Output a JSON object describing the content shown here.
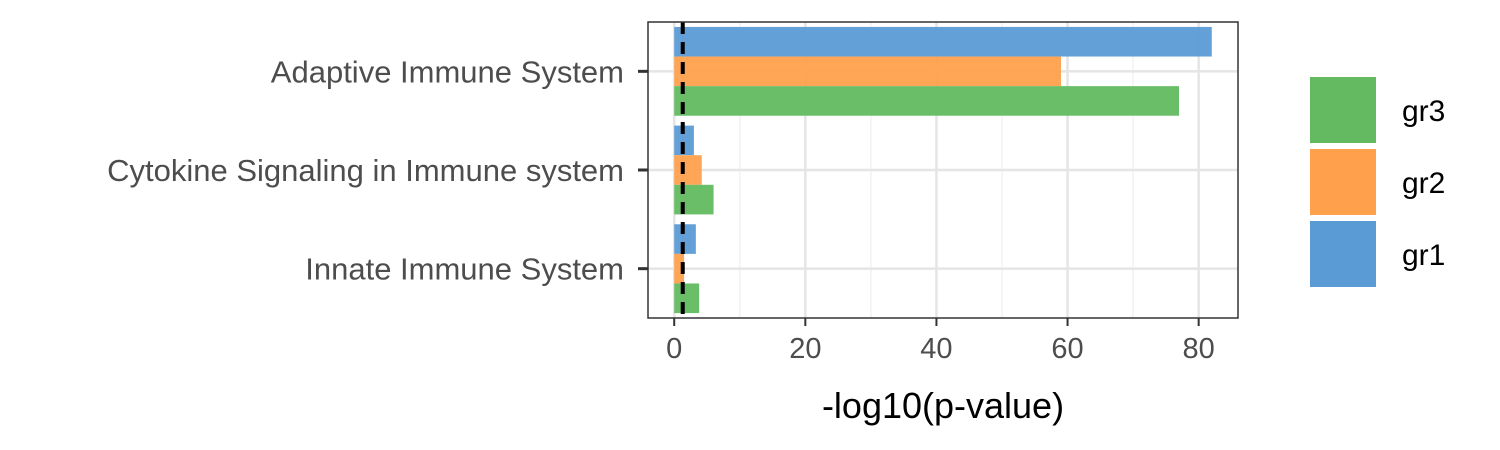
{
  "chart_data": {
    "type": "bar",
    "orientation": "horizontal",
    "categories": [
      "Adaptive Immune System",
      "Cytokine Signaling in Immune system",
      "Innate Immune System"
    ],
    "series": [
      {
        "name": "gr1",
        "color": "#5B9BD5",
        "values": [
          82,
          3,
          3.3
        ]
      },
      {
        "name": "gr2",
        "color": "#FFA04D",
        "values": [
          59,
          4.2,
          1.5
        ]
      },
      {
        "name": "gr3",
        "color": "#63BA60",
        "values": [
          77,
          6,
          3.8
        ]
      }
    ],
    "xlabel": "-log10(p-value)",
    "ylabel": "",
    "xlim": [
      -4,
      86
    ],
    "xticks": [
      0,
      20,
      40,
      60,
      80
    ],
    "reference_line": {
      "x": 1.3,
      "style": "dashed"
    },
    "grid": true,
    "legend": {
      "position": "right",
      "order": [
        "gr3",
        "gr2",
        "gr1"
      ]
    }
  }
}
